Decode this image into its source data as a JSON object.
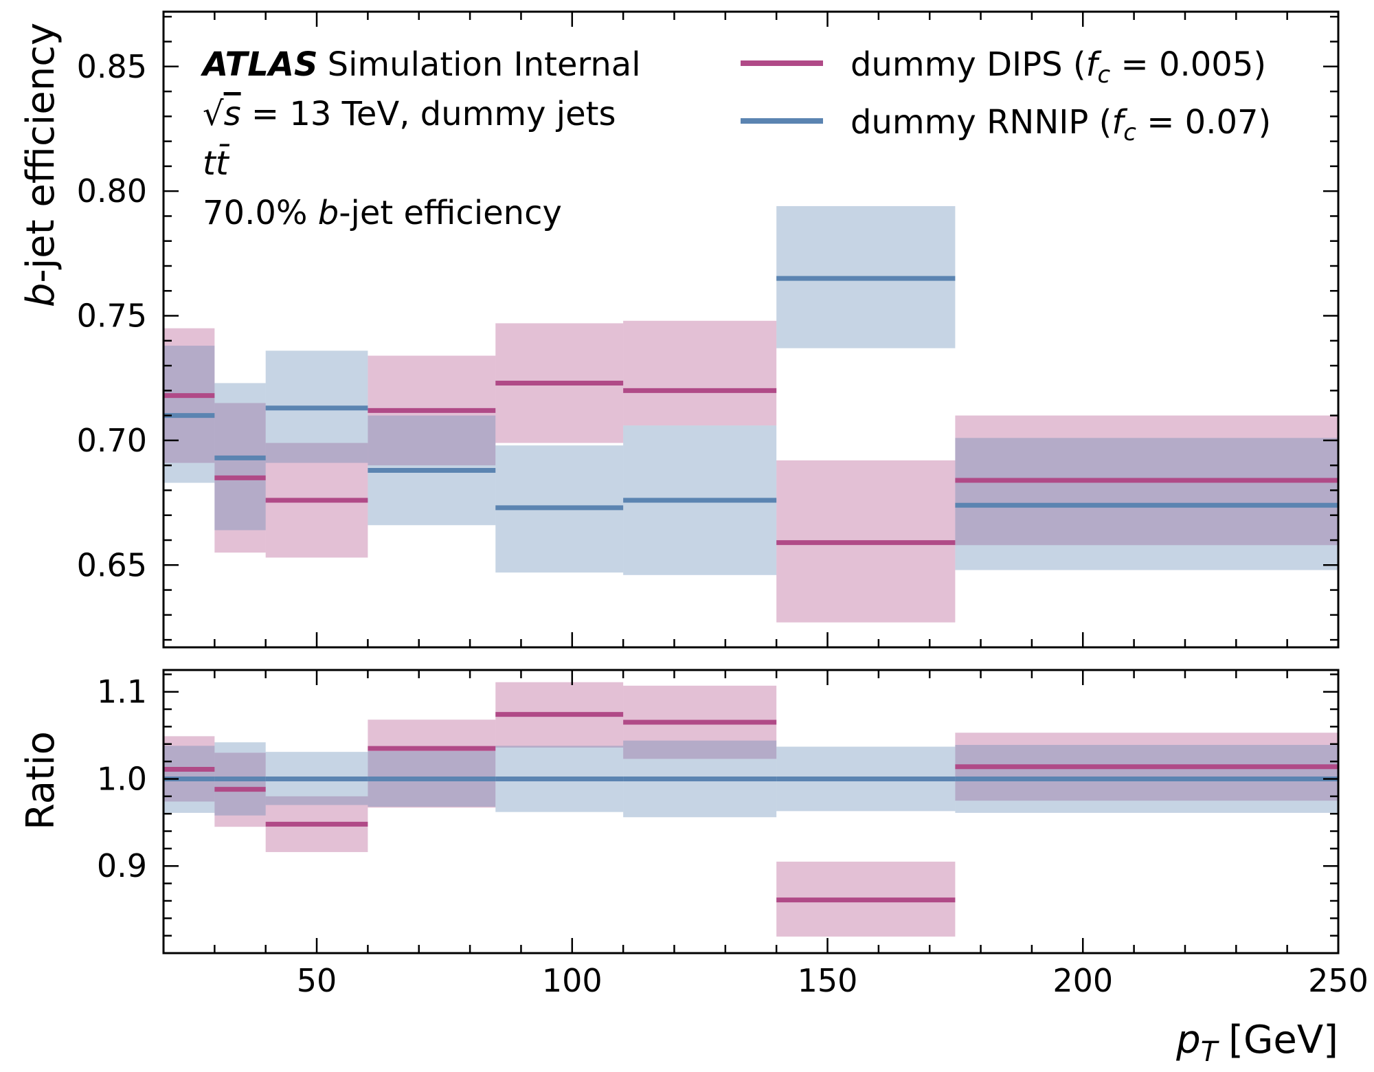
{
  "chart_data": {
    "type": "line",
    "xlabel_var": "p",
    "xlabel_sub": "T",
    "xlabel_unit": "[GeV]",
    "x_bin_edges": [
      20,
      30,
      40,
      60,
      85,
      110,
      140,
      175,
      250
    ],
    "xlim": [
      20,
      250
    ],
    "x_ticks": [
      50,
      100,
      150,
      200,
      250
    ],
    "x_tick_labels": [
      "50",
      "100",
      "150",
      "200",
      "250"
    ],
    "colors": {
      "DIPS": "#b04a87",
      "RNNIP": "#5b84b1"
    },
    "annotations": {
      "atlas": "ATLAS",
      "atlas_rest": "Simulation Internal",
      "energy_sqrt": "√",
      "energy_s": "s",
      "energy_rest": " = 13 TeV, dummy jets",
      "sample": "tt̄",
      "wp_pre": "70.0% ",
      "wp_b": "b",
      "wp_post": "-jet efficiency"
    },
    "legend": [
      {
        "key": "DIPS",
        "label_pre": "dummy DIPS (",
        "f": "f",
        "c": "c",
        "label_post": " = 0.005)"
      },
      {
        "key": "RNNIP",
        "label_pre": "dummy RNNIP (",
        "f": "f",
        "c": "c",
        "label_post": " = 0.07)"
      }
    ],
    "top": {
      "ylabel_b": "b",
      "ylabel_rest": "-jet efficiency",
      "ylim": [
        0.617,
        0.872
      ],
      "y_ticks": [
        0.65,
        0.7,
        0.75,
        0.8,
        0.85
      ],
      "y_tick_labels": [
        "0.65",
        "0.70",
        "0.75",
        "0.80",
        "0.85"
      ],
      "series": [
        {
          "key": "DIPS",
          "values": [
            0.718,
            0.685,
            0.676,
            0.712,
            0.723,
            0.72,
            0.659,
            0.684
          ],
          "lower": [
            0.691,
            0.655,
            0.653,
            0.69,
            0.699,
            0.706,
            0.627,
            0.658
          ],
          "upper": [
            0.745,
            0.715,
            0.699,
            0.734,
            0.747,
            0.748,
            0.692,
            0.71
          ]
        },
        {
          "key": "RNNIP",
          "values": [
            0.71,
            0.693,
            0.713,
            0.688,
            0.673,
            0.676,
            0.765,
            0.674
          ],
          "lower": [
            0.683,
            0.664,
            0.691,
            0.666,
            0.647,
            0.646,
            0.737,
            0.648
          ],
          "upper": [
            0.738,
            0.723,
            0.736,
            0.71,
            0.698,
            0.706,
            0.794,
            0.701
          ]
        }
      ]
    },
    "ratio": {
      "ylabel": "Ratio",
      "ylim": [
        0.8,
        1.125
      ],
      "y_ticks": [
        0.9,
        1.0,
        1.1
      ],
      "y_tick_labels": [
        "0.9",
        "1.0",
        "1.1"
      ],
      "series": [
        {
          "key": "DIPS",
          "values": [
            1.011,
            0.988,
            0.948,
            1.035,
            1.074,
            1.065,
            0.861,
            1.014
          ],
          "lower": [
            0.974,
            0.945,
            0.916,
            0.967,
            1.036,
            1.023,
            0.819,
            0.975
          ],
          "upper": [
            1.049,
            1.03,
            0.98,
            1.068,
            1.111,
            1.107,
            0.905,
            1.053
          ]
        },
        {
          "key": "RNNIP",
          "values": [
            1.0,
            1.0,
            1.0,
            1.0,
            1.0,
            1.0,
            1.0,
            1.0
          ],
          "lower": [
            0.961,
            0.958,
            0.97,
            0.968,
            0.962,
            0.956,
            0.963,
            0.961
          ],
          "upper": [
            1.038,
            1.042,
            1.031,
            1.032,
            1.038,
            1.044,
            1.037,
            1.039
          ]
        }
      ]
    }
  }
}
